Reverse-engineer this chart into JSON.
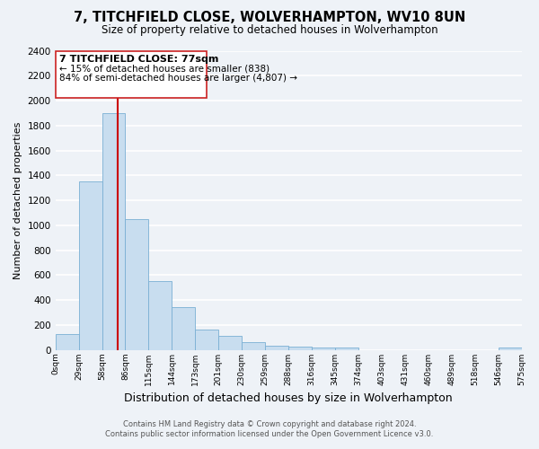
{
  "title": "7, TITCHFIELD CLOSE, WOLVERHAMPTON, WV10 8UN",
  "subtitle": "Size of property relative to detached houses in Wolverhampton",
  "xlabel": "Distribution of detached houses by size in Wolverhampton",
  "ylabel": "Number of detached properties",
  "bar_color": "#c8ddef",
  "bar_edge_color": "#7aafd4",
  "bin_labels": [
    "0sqm",
    "29sqm",
    "58sqm",
    "86sqm",
    "115sqm",
    "144sqm",
    "173sqm",
    "201sqm",
    "230sqm",
    "259sqm",
    "288sqm",
    "316sqm",
    "345sqm",
    "374sqm",
    "403sqm",
    "431sqm",
    "460sqm",
    "489sqm",
    "518sqm",
    "546sqm",
    "575sqm"
  ],
  "bar_heights": [
    125,
    1350,
    1900,
    1050,
    550,
    340,
    165,
    110,
    60,
    30,
    25,
    20,
    15,
    0,
    0,
    0,
    0,
    0,
    0,
    15,
    0
  ],
  "ylim": [
    0,
    2400
  ],
  "yticks": [
    0,
    200,
    400,
    600,
    800,
    1000,
    1200,
    1400,
    1600,
    1800,
    2000,
    2200,
    2400
  ],
  "annotation_title": "7 TITCHFIELD CLOSE: 77sqm",
  "annotation_line1": "← 15% of detached houses are smaller (838)",
  "annotation_line2": "84% of semi-detached houses are larger (4,807) →",
  "footer_line1": "Contains HM Land Registry data © Crown copyright and database right 2024.",
  "footer_line2": "Contains public sector information licensed under the Open Government Licence v3.0.",
  "background_color": "#eef2f7",
  "grid_color": "#ffffff",
  "annotation_box_color": "#ffffff",
  "annotation_box_edge": "#cc2222",
  "red_line_color": "#cc0000",
  "red_line_xbin": 2.679
}
